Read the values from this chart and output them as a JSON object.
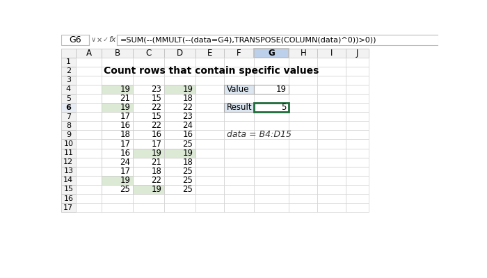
{
  "title": "Count rows that contain specific values",
  "formula_bar_cell": "G6",
  "formula_bar_text": "=SUM(--(MMULT(--(data=G4),TRANSPOSE(COLUMN(data)^0))>0))",
  "col_headers": [
    "A",
    "B",
    "C",
    "D",
    "E",
    "F",
    "G",
    "H",
    "I",
    "J"
  ],
  "row_headers": [
    "1",
    "2",
    "3",
    "4",
    "5",
    "6",
    "7",
    "8",
    "9",
    "10",
    "11",
    "12",
    "13",
    "14",
    "15",
    "16",
    "17"
  ],
  "table_data": [
    [
      19,
      23,
      19
    ],
    [
      21,
      15,
      18
    ],
    [
      19,
      22,
      22
    ],
    [
      17,
      15,
      23
    ],
    [
      16,
      22,
      24
    ],
    [
      18,
      16,
      16
    ],
    [
      17,
      17,
      25
    ],
    [
      16,
      19,
      19
    ],
    [
      24,
      21,
      18
    ],
    [
      17,
      18,
      25
    ],
    [
      19,
      22,
      25
    ],
    [
      25,
      19,
      25
    ]
  ],
  "highlight_rows": [
    0,
    2,
    7,
    10,
    11
  ],
  "highlight_cols_per_row": {
    "0": [
      0,
      2
    ],
    "2": [
      0
    ],
    "7": [
      1,
      2
    ],
    "10": [
      0
    ],
    "11": [
      1
    ]
  },
  "value_label": "Value",
  "value_number": 19,
  "result_label": "Result",
  "result_number": 5,
  "annotation": "data = B4:D15",
  "highlight_color": "#dce9d5",
  "selected_col_bg": "#bdd0eb",
  "label_bg": "#dce6f1",
  "result_border_color": "#1f6b3a",
  "row6_header_bg": "#e8edf5",
  "col_g_header_bg": "#bdd0eb"
}
